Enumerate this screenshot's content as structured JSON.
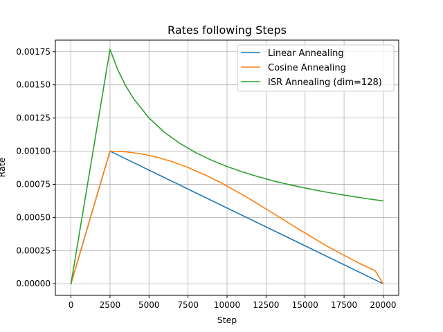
{
  "chart_data": {
    "type": "line",
    "title": "Rates following Steps",
    "xlabel": "Step",
    "ylabel": "Rate",
    "xlim": [
      -1000,
      21000
    ],
    "ylim": [
      -8.75e-05,
      0.0018375
    ],
    "xticks": [
      0,
      2500,
      5000,
      7500,
      10000,
      12500,
      15000,
      17500,
      20000
    ],
    "xtick_labels": [
      "0",
      "2500",
      "5000",
      "7500",
      "10000",
      "12500",
      "15000",
      "17500",
      "20000"
    ],
    "yticks": [
      0,
      0.00025,
      0.0005,
      0.00075,
      0.001,
      0.00125,
      0.0015,
      0.00175
    ],
    "ytick_labels": [
      "0.00000",
      "0.00025",
      "0.00050",
      "0.00075",
      "0.00100",
      "0.00125",
      "0.00150",
      "0.00175"
    ],
    "grid": true,
    "legend_position": "upper-right",
    "series": [
      {
        "name": "Linear Annealing",
        "color": "#1f77b4",
        "x": [
          0,
          2500,
          5000,
          7500,
          10000,
          12500,
          15000,
          17500,
          20000
        ],
        "y": [
          0,
          0.001,
          0.000857,
          0.000714,
          0.000571,
          0.000429,
          0.000286,
          0.000143,
          0
        ]
      },
      {
        "name": "Cosine Annealing",
        "color": "#ff7f0e",
        "x": [
          0,
          2500,
          3500,
          4500,
          5500,
          6500,
          7500,
          8500,
          9500,
          10500,
          11500,
          12500,
          13500,
          14500,
          15500,
          16500,
          17500,
          18500,
          19500,
          20000
        ],
        "y": [
          0,
          0.001,
          0.000995,
          0.00098,
          0.000955,
          0.00092,
          0.000877,
          0.000826,
          0.000768,
          0.000704,
          0.000636,
          0.000564,
          0.000491,
          0.000418,
          0.000347,
          0.000278,
          0.000214,
          0.000153,
          9.7e-05,
          0
        ]
      },
      {
        "name": "ISR Annealing (dim=128)",
        "color": "#2ca02c",
        "x": [
          0,
          2500,
          3000,
          3500,
          4000,
          5000,
          6000,
          7000,
          8000,
          9000,
          10000,
          11000,
          12000,
          13000,
          14000,
          15000,
          16000,
          17000,
          18000,
          19000,
          20000
        ],
        "y": [
          0,
          0.001768,
          0.001614,
          0.001494,
          0.001398,
          0.00125,
          0.001141,
          0.001057,
          0.000988,
          0.000932,
          0.000884,
          0.000843,
          0.000807,
          0.000775,
          0.000747,
          0.000722,
          0.000699,
          0.000678,
          0.000659,
          0.000641,
          0.000625
        ]
      }
    ]
  }
}
